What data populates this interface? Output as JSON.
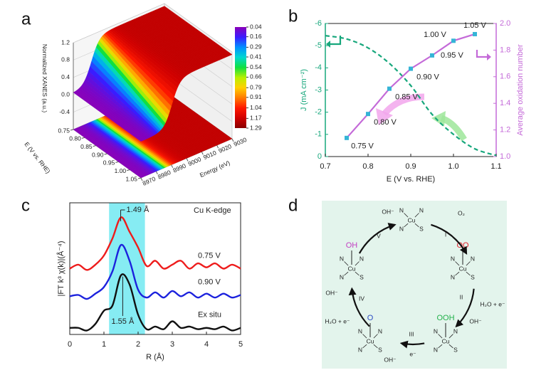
{
  "panel_labels": [
    "a",
    "b",
    "c",
    "d"
  ],
  "chart_data": [
    {
      "type": "surface3d",
      "zlabel": "Normalized XANES (a.u.)",
      "ylabel": "E (V vs. RHE)",
      "xlabel": "Energy (eV)",
      "xlim": [
        8970,
        9030
      ],
      "xticks": [
        8970,
        8980,
        8990,
        9000,
        9010,
        9020,
        9030
      ],
      "ylim": [
        0.75,
        1.05
      ],
      "yticks": [
        0.75,
        {
          "value": 0.8,
          "label": "0.80"
        },
        0.85,
        {
          "value": 0.9,
          "label": "0.90"
        },
        0.95,
        {
          "value": 1,
          "label": "1.00"
        },
        1.05
      ],
      "zlim": [
        -0.8,
        1.2
      ],
      "zticks": [
        -0.4,
        {
          "value": 0,
          "label": "0.0"
        },
        0.4,
        0.8,
        1.2
      ],
      "colorbar": {
        "lim": [
          0.04,
          1.29
        ],
        "ticks": [
          0.04,
          0.16,
          0.29,
          0.41,
          0.54,
          0.66,
          0.79,
          0.91,
          1.04,
          1.17,
          1.29
        ],
        "colors": [
          "#8a00b8",
          "#3a1cff",
          "#0090ff",
          "#00d8d0",
          "#10e040",
          "#b8f000",
          "#ffd000",
          "#ff7a00",
          "#ff1800",
          "#d00000",
          "#8a0000"
        ]
      }
    },
    {
      "type": "line",
      "xlabel": "E (V vs. RHE)",
      "ylabel": "J (mA cm⁻²)",
      "y2label": "Average oxidation number",
      "xlim": [
        0.7,
        1.1
      ],
      "xticks": [
        0.7,
        0.8,
        0.9,
        {
          "value": 1,
          "label": "1.0"
        },
        1.1
      ],
      "ylim": [
        -6,
        0
      ],
      "y_inverted": true,
      "yticks": [
        -6,
        -5,
        -4,
        -3,
        -2,
        -1,
        0
      ],
      "y2lim": [
        1,
        2
      ],
      "y2ticks": [
        {
          "value": 1,
          "label": "1.0"
        },
        1.2,
        1.4,
        1.6,
        1.8,
        {
          "value": 2,
          "label": "2.0"
        }
      ],
      "series": [
        {
          "axis": "y",
          "color": "#17a77c",
          "dashed": true,
          "x": [
            0.7,
            0.75,
            0.8,
            0.85,
            0.9,
            0.95,
            1,
            1.05,
            1.1
          ],
          "values": [
            -5.45,
            -5.3,
            -4.9,
            -4.2,
            -3.2,
            -1.9,
            -1.0,
            -0.35,
            -0.05
          ]
        },
        {
          "axis": "y2",
          "color": "#c46ad8",
          "marker_color": "#35b4d6",
          "x": [
            0.75,
            0.8,
            0.85,
            0.9,
            0.95,
            1,
            1.05
          ],
          "values": [
            1.14,
            1.32,
            1.51,
            1.66,
            1.76,
            1.87,
            1.92
          ],
          "labels": [
            "0.75 V",
            "0.80 V",
            "0.85 V",
            "0.90 V",
            "0.95 V",
            "1.00 V",
            "1.05 V"
          ]
        }
      ]
    },
    {
      "type": "line",
      "xlabel": "R (Å)",
      "ylabel": "|FT k³ χ(k)|(Å⁻⁴)",
      "xlim": [
        0,
        5
      ],
      "xticks": [
        0,
        1,
        2,
        3,
        4,
        5
      ],
      "ylim": [
        0,
        10
      ],
      "highlight": {
        "range": [
          1.15,
          2.2
        ],
        "color": "#86ecf3"
      },
      "annotations": [
        {
          "text": "1.49 Å",
          "x": 1.49
        },
        {
          "text": "1.55 Å",
          "x": 1.55
        }
      ],
      "note": "Cu K-edge",
      "x": [
        0,
        0.25,
        0.5,
        0.75,
        1,
        1.25,
        1.5,
        1.75,
        2,
        2.25,
        2.5,
        2.75,
        3,
        3.25,
        3.5,
        3.75,
        4,
        4.25,
        4.5,
        4.75,
        5
      ],
      "series": [
        {
          "name": "0.75 V",
          "color": "#ee1c1c",
          "values": [
            5.0,
            5.3,
            4.9,
            5.3,
            6.0,
            7.3,
            8.9,
            7.8,
            6.6,
            5.2,
            5.6,
            5.0,
            5.3,
            5.6,
            5.0,
            5.4,
            5.1,
            5.4,
            5.0,
            5.3,
            5.0
          ]
        },
        {
          "name": "0.90 V",
          "color": "#1c22dd",
          "values": [
            2.9,
            3.0,
            2.7,
            3.1,
            3.6,
            4.8,
            6.8,
            5.6,
            3.4,
            2.8,
            3.2,
            2.8,
            3.3,
            2.9,
            3.2,
            2.8,
            3.1,
            2.8,
            3.1,
            2.8,
            3.0
          ]
        },
        {
          "name": "Ex situ",
          "color": "#111111",
          "values": [
            0.5,
            0.5,
            0.3,
            0.8,
            1.8,
            2.2,
            4.5,
            3.8,
            1.5,
            0.4,
            0.6,
            0.4,
            1.0,
            0.5,
            0.6,
            0.4,
            0.5,
            0.4,
            0.6,
            0.3,
            0.5
          ]
        }
      ]
    }
  ],
  "diagram": {
    "complexes": [
      {
        "metal": "Cu",
        "ligands": [
          "N",
          "N",
          "N",
          "S"
        ]
      },
      {
        "metal": "Cu",
        "ligands": [
          "N",
          "N",
          "N",
          "S"
        ],
        "adsorbate": "OO",
        "adsorbate_color": "#e2202c"
      },
      {
        "metal": "Cu",
        "ligands": [
          "N",
          "N",
          "N",
          "S"
        ],
        "adsorbate": "OOH",
        "adsorbate_color": "#22b04a"
      },
      {
        "metal": "Cu",
        "ligands": [
          "N",
          "N",
          "N",
          "S"
        ],
        "adsorbate": "O",
        "adsorbate_color": "#2c4cc4"
      },
      {
        "metal": "Cu",
        "ligands": [
          "N",
          "N",
          "N",
          "S"
        ],
        "adsorbate": "OH",
        "adsorbate_color": "#c23ec2"
      }
    ],
    "steps": [
      {
        "numeral": "I",
        "species": [
          "O₂"
        ]
      },
      {
        "numeral": "II",
        "species": [
          "H₂O + e⁻",
          "OH⁻"
        ]
      },
      {
        "numeral": "III",
        "species": [
          "e⁻",
          "OH⁻"
        ]
      },
      {
        "numeral": "IV",
        "species": [
          "H₂O + e⁻",
          "OH⁻"
        ]
      },
      {
        "numeral": "V",
        "species": [
          "OH⁻"
        ]
      }
    ]
  }
}
